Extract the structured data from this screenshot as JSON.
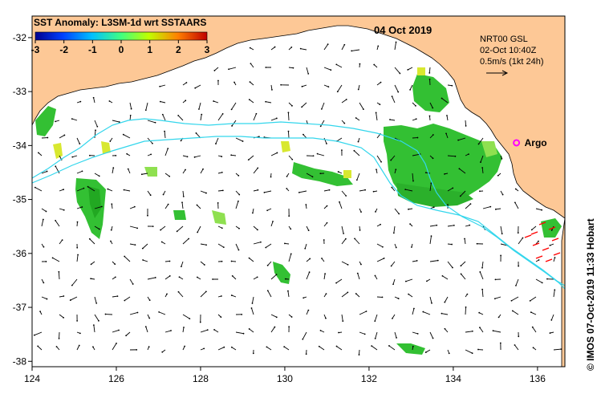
{
  "title": "SST Anomaly: L3SM-1d wrt SSTAARS",
  "date": "04 Oct 2019",
  "colorbar": {
    "ticks": [
      "-3",
      "-2",
      "-1",
      "0",
      "1",
      "2",
      "3"
    ],
    "colors": [
      "#00008f",
      "#0040ff",
      "#00c0ff",
      "#40ff80",
      "#c0ff00",
      "#ff8000",
      "#c00000"
    ]
  },
  "current_info": {
    "source": "NRT00 GSL",
    "time": "02-Oct 10:40Z",
    "scale": "0.5m/s (1kt 24h)"
  },
  "argo": {
    "label": "Argo",
    "lon": 135.5,
    "lat": -33.95,
    "color": "#ff00ff"
  },
  "credit": "© IMOS 07-Oct-2019 11:33 Hobart",
  "axes": {
    "x_ticks": [
      "124",
      "126",
      "128",
      "130",
      "132",
      "134",
      "136"
    ],
    "x_values": [
      124,
      126,
      128,
      130,
      132,
      134,
      136
    ],
    "y_ticks": [
      "-32",
      "-33",
      "-34",
      "-35",
      "-36",
      "-37",
      "-38"
    ],
    "y_values": [
      -32,
      -33,
      -34,
      -35,
      -36,
      -37,
      -38
    ],
    "lon_range": [
      124,
      136.65
    ],
    "lat_range": [
      -31.6,
      -38.1
    ]
  },
  "colors": {
    "land": "#fdc896",
    "contour": "#33d6ec",
    "sst_green": "#33c033",
    "sst_light": "#8fe050",
    "sst_yellow": "#d8e830",
    "arrow": "#000000",
    "arrow_red": "#ff0000"
  }
}
